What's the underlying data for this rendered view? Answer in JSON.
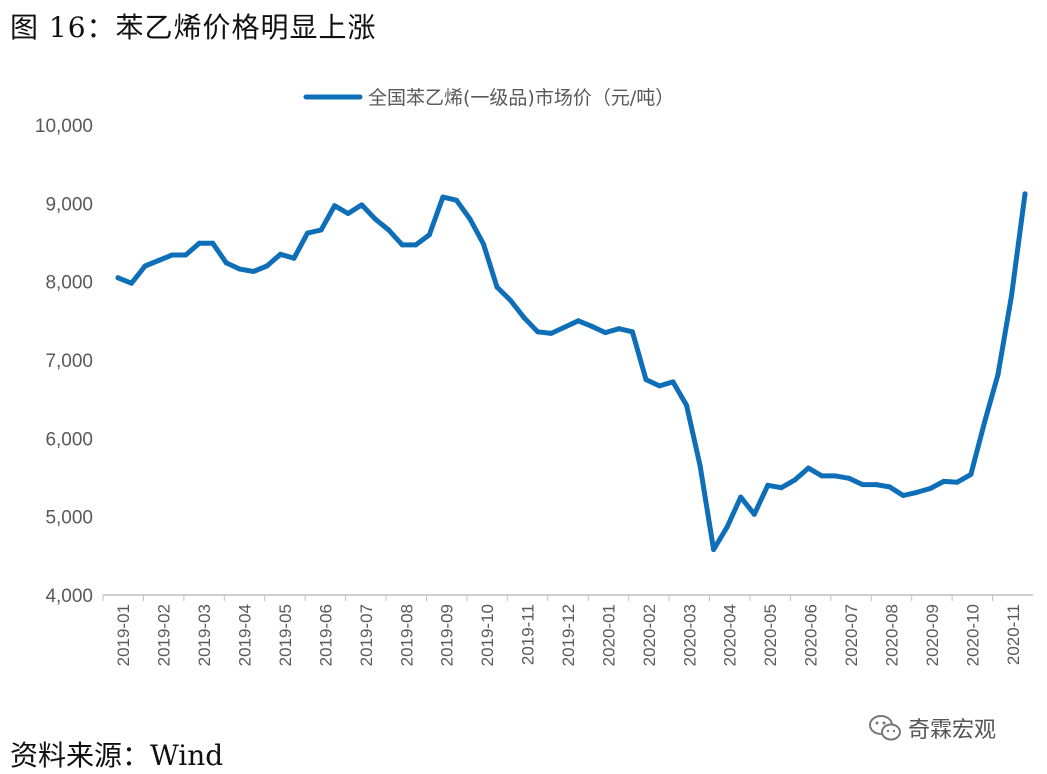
{
  "figure": {
    "title": "图 16：苯乙烯价格明显上涨",
    "source": "资料来源：Wind",
    "watermark": "奇霖宏观"
  },
  "chart_data": {
    "type": "line",
    "title": "",
    "xlabel": "",
    "ylabel": "",
    "ylim": [
      4000,
      10000
    ],
    "yticks": [
      4000,
      5000,
      6000,
      7000,
      8000,
      9000,
      10000
    ],
    "ytick_labels": [
      "4,000",
      "5,000",
      "6,000",
      "7,000",
      "8,000",
      "9,000",
      "10,000"
    ],
    "xtick_labels": [
      "2019-01",
      "2019-02",
      "2019-03",
      "2019-04",
      "2019-05",
      "2019-06",
      "2019-07",
      "2019-08",
      "2019-09",
      "2019-10",
      "2019-11",
      "2019-12",
      "2020-01",
      "2020-02",
      "2020-03",
      "2020-04",
      "2020-05",
      "2020-06",
      "2020-07",
      "2020-08",
      "2020-09",
      "2020-10",
      "2020-11"
    ],
    "grid": false,
    "legend_position": "top",
    "color": "#0e6fb8",
    "series": [
      {
        "name": "全国苯乙烯(一级品)市场价（元/吨）",
        "values": [
          8050,
          7980,
          8200,
          8270,
          8340,
          8340,
          8490,
          8490,
          8240,
          8160,
          8130,
          8200,
          8350,
          8300,
          8620,
          8660,
          8970,
          8870,
          8980,
          8800,
          8660,
          8470,
          8470,
          8600,
          9080,
          9040,
          8800,
          8480,
          7930,
          7760,
          7540,
          7360,
          7340,
          7420,
          7500,
          7430,
          7350,
          7400,
          7360,
          6750,
          6670,
          6720,
          6420,
          5650,
          4580,
          4870,
          5250,
          5030,
          5400,
          5370,
          5470,
          5620,
          5520,
          5520,
          5490,
          5410,
          5410,
          5380,
          5270,
          5310,
          5360,
          5450,
          5440,
          5540,
          6200,
          6810,
          7820,
          9120
        ]
      }
    ]
  }
}
